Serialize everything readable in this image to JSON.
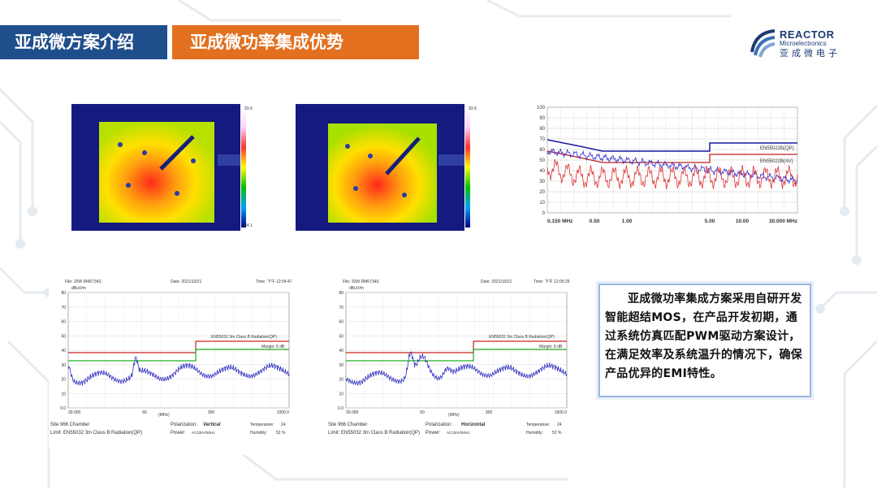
{
  "header": {
    "section_tab": "亚成微方案介绍",
    "title_tab": "亚成微功率集成优势"
  },
  "logo": {
    "brand_en": "REACTOR",
    "brand_sub": "Microelectronics",
    "brand_cn": "亚成微电子"
  },
  "thermal_left": {
    "scale_max": "93.6",
    "scale_min": "24.1"
  },
  "thermal_right": {
    "scale_max": "93.6"
  },
  "conducted_emi": {
    "y_ticks": [
      "100",
      "90",
      "80",
      "70",
      "60",
      "50",
      "40",
      "30",
      "20",
      "10",
      "0"
    ],
    "x_ticks": [
      "0.150 MHz",
      "0.50",
      "1.00",
      "5.00",
      "10.00",
      "30.000 MHz"
    ],
    "limit_qp_label": "EN55022B(QP)",
    "limit_av_label": "EN55022B(AV)"
  },
  "radiated_left": {
    "file": "File: 20W RM6734S",
    "date": "Date: 2021/10/21",
    "time": "Time: 下午 12:04:47",
    "unit": "dBuV/m",
    "limit_label": "EN55032 3m Class B Radiation(QP)",
    "margin_label": "Margin: 6 dB",
    "y_ticks": [
      "80",
      "70",
      "60",
      "50",
      "40",
      "30",
      "20",
      "10",
      "0.0"
    ],
    "x_ticks": [
      "30.000",
      "60",
      "300",
      "1000.0"
    ],
    "x_unit": "(MHz)",
    "site": "Site 966 Chamber",
    "limit_footer": "Limit: EN55032 3m Class B Radiation(QP)",
    "polarization_label": "Polarization:",
    "polarization_value": "Vertical",
    "power_label": "Power:",
    "power_value": "AC230V/50Hz",
    "temperature_label": "Temperature:",
    "temperature_value": "24",
    "humidity_label": "Humidity:",
    "humidity_value": "52 %"
  },
  "radiated_right": {
    "file": "File: 20W RM6734S",
    "date": "Date: 2021/10/21",
    "time": "Time: 下午 12:06:29",
    "unit": "dBuV/m",
    "limit_label": "EN55032 3m Class B Radiation(QP)",
    "margin_label": "Margin: 6 dB",
    "y_ticks": [
      "80",
      "70",
      "60",
      "50",
      "40",
      "30",
      "20",
      "10",
      "0.0"
    ],
    "x_ticks": [
      "30.000",
      "60",
      "300",
      "1000.0"
    ],
    "x_unit": "(MHz)",
    "site": "Site 966 Chamber",
    "limit_footer": "Limit: EN55032 3m Class B Radiation(QP)",
    "polarization_label": "Polarization:",
    "polarization_value": "Horizontal",
    "power_label": "Power:",
    "power_value": "AC230V/50Hz",
    "temperature_label": "Temperature:",
    "temperature_value": "24",
    "humidity_label": "Humidity:",
    "humidity_value": "52 %"
  },
  "callout": {
    "text": "亚成微功率集成方案采用自研开发智能超结MOS，在产品开发初期，通过系统仿真匹配PWM驱动方案设计，在满足效率及系统温升的情况下，确保产品优异的EMI特性。"
  }
}
